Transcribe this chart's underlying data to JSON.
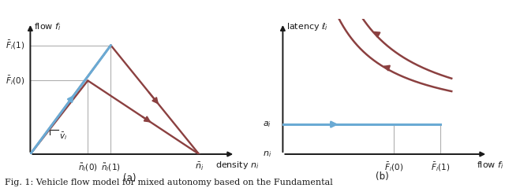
{
  "fig_width": 6.4,
  "fig_height": 2.39,
  "bg_color": "#ffffff",
  "blue_color": "#6aaad4",
  "red_color": "#8b4040",
  "gray_color": "#b0b0b0",
  "black_color": "#1a1a1a",
  "subplot_a": {
    "n_hat_0": 0.3,
    "n_hat_1": 0.42,
    "F_bar_0": 0.5,
    "F_bar_1": 0.74,
    "n_bar": 0.88,
    "xlabel": "density $n_i$",
    "ylabel": "flow $f_i$",
    "label_a": "(a)",
    "xlim": [
      0,
      1.08
    ],
    "ylim": [
      0,
      0.92
    ]
  },
  "subplot_b": {
    "a_i": 0.22,
    "F_bar_0": 0.58,
    "F_bar_1": 0.82,
    "xlabel": "flow $f_i$",
    "ylabel": "latency $\\ell_i$",
    "label_b": "(b)",
    "n_i_label": "$n_i$",
    "xlim": [
      0,
      1.08
    ],
    "ylim": [
      0,
      1.0
    ]
  },
  "caption": "Fig. 1: Vehicle flow model for mixed autonomy based on the Fundamental"
}
